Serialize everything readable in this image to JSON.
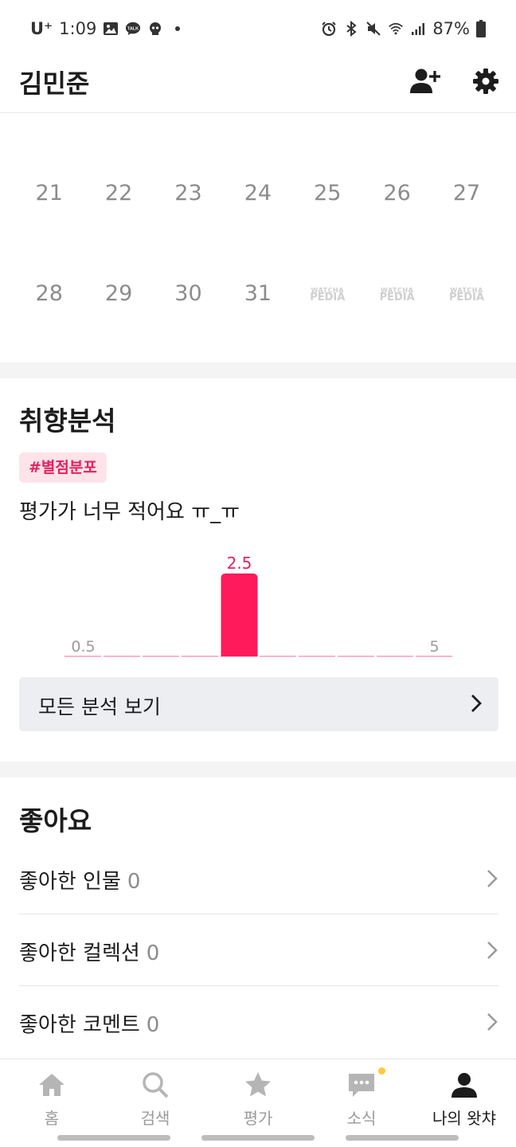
{
  "status_bar": {
    "carrier": "U⁺",
    "time": "1:09",
    "battery": "87%",
    "icons_left": [
      "gallery-icon",
      "kakaotalk-icon",
      "app-icon",
      "dot-icon"
    ],
    "icons_right": [
      "alarm-icon",
      "bluetooth-icon",
      "mute-icon",
      "wifi-icon",
      "signal-icon",
      "battery-icon"
    ]
  },
  "header": {
    "title": "김민준"
  },
  "calendar": {
    "row1": [
      "21",
      "22",
      "23",
      "24",
      "25",
      "26",
      "27"
    ],
    "row2": [
      "28",
      "29",
      "30",
      "31"
    ],
    "placeholder_logo": {
      "top": "WATCHA",
      "bottom": "PEDIA"
    }
  },
  "analysis": {
    "title": "취향분석",
    "tag": "#별점분포",
    "message": "평가가 너무 적어요 ㅠ_ㅠ",
    "all_button": "모든 분석 보기"
  },
  "chart_data": {
    "type": "bar",
    "categories": [
      "0.5",
      "1",
      "1.5",
      "2",
      "2.5",
      "3",
      "3.5",
      "4",
      "4.5",
      "5"
    ],
    "values": [
      0,
      0,
      0,
      0,
      1,
      0,
      0,
      0,
      0,
      0
    ],
    "highlight_label": "2.5",
    "tick_labels": [
      "0.5",
      "5"
    ],
    "bar_color": "#ff1a5c",
    "baseline_color": "#f4b8c8",
    "label_color": "#e0245e"
  },
  "likes": {
    "title": "좋아요",
    "items": [
      {
        "label": "좋아한 인물",
        "count": "0"
      },
      {
        "label": "좋아한 컬렉션",
        "count": "0"
      },
      {
        "label": "좋아한 코멘트",
        "count": "0"
      }
    ]
  },
  "bottom_nav": {
    "items": [
      {
        "label": "홈",
        "icon": "home-icon"
      },
      {
        "label": "검색",
        "icon": "search-icon"
      },
      {
        "label": "평가",
        "icon": "star-icon"
      },
      {
        "label": "소식",
        "icon": "chat-icon"
      },
      {
        "label": "나의 왓챠",
        "icon": "profile-icon"
      }
    ]
  }
}
